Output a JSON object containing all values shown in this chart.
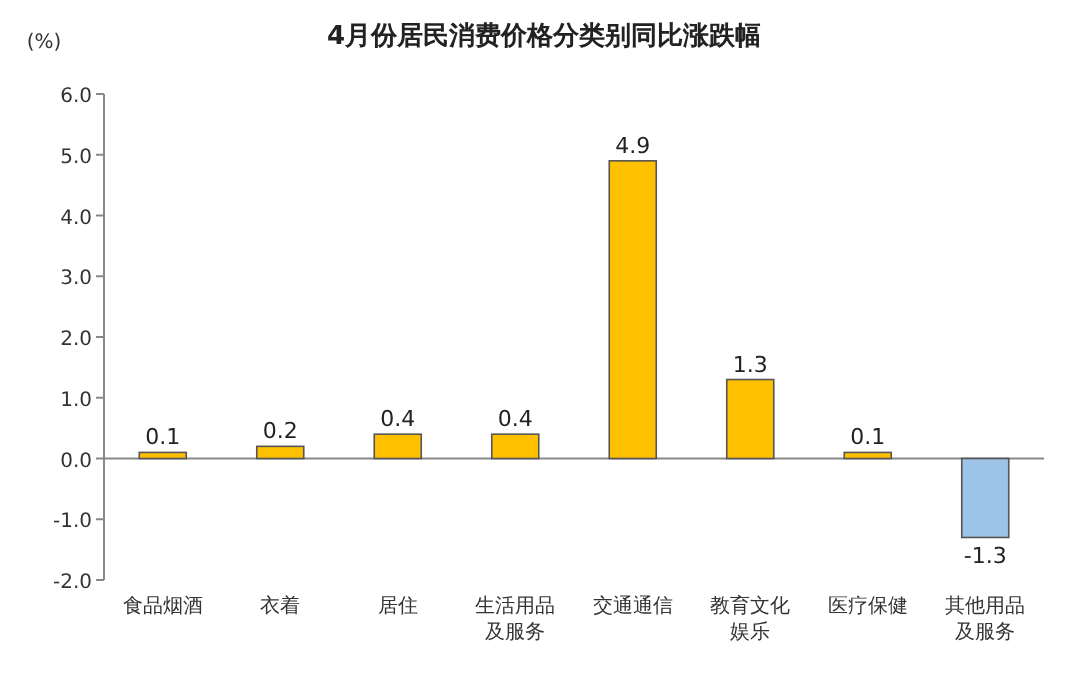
{
  "chart_data": {
    "type": "bar",
    "title": "4月份居民消费价格分类别同比涨跌幅",
    "ylabel": "(%)",
    "categories": [
      "食品烟酒",
      "衣着",
      "居住",
      "生活用品及服务",
      "交通通信",
      "教育文化娱乐",
      "医疗保健",
      "其他用品及服务"
    ],
    "values": [
      0.1,
      0.2,
      0.4,
      0.4,
      4.9,
      1.3,
      0.1,
      -1.3
    ],
    "colors": [
      "#ffc000",
      "#ffc000",
      "#ffc000",
      "#ffc000",
      "#ffc000",
      "#ffc000",
      "#ffc000",
      "#9dc3e6"
    ],
    "ylim": [
      -2,
      6
    ],
    "yticks": [
      {
        "value": -2,
        "label": "-2.0"
      },
      {
        "value": -1,
        "label": "-1.0"
      },
      {
        "value": 0,
        "label": "0.0"
      },
      {
        "value": 1,
        "label": "1.0"
      },
      {
        "value": 2,
        "label": "2.0"
      },
      {
        "value": 3,
        "label": "3.0"
      },
      {
        "value": 4,
        "label": "4.0"
      },
      {
        "value": 5,
        "label": "5.0"
      },
      {
        "value": 6,
        "label": "6.0"
      }
    ],
    "data_labels": true
  }
}
